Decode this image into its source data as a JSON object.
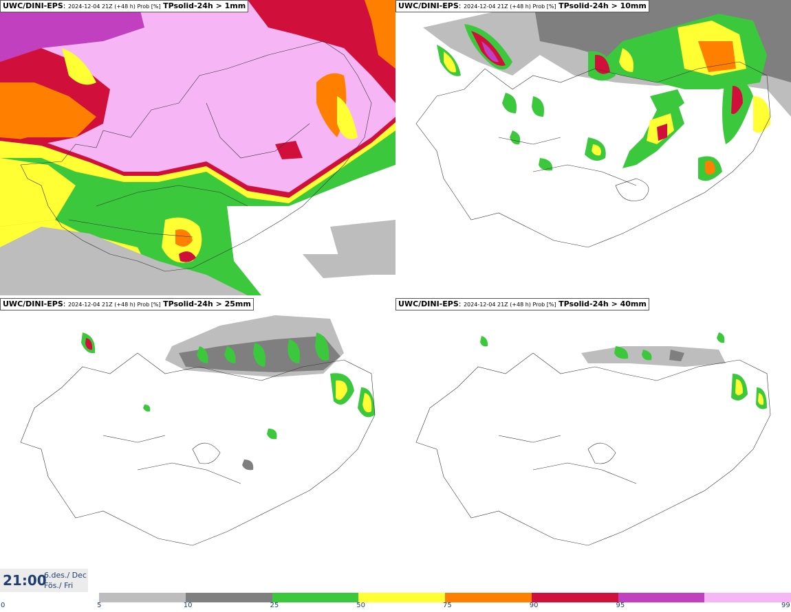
{
  "panels": [
    {
      "model": "UWC/DINI-EPS",
      "run": "2024-12-04 21Z (+48 h) Prob [%]",
      "param": "TPsolid-24h > 1mm"
    },
    {
      "model": "UWC/DINI-EPS",
      "run": "2024-12-04 21Z (+48 h) Prob [%]",
      "param": "TPsolid-24h > 10mm"
    },
    {
      "model": "UWC/DINI-EPS",
      "run": "2024-12-04 21Z (+48 h) Prob [%]",
      "param": "TPsolid-24h > 25mm"
    },
    {
      "model": "UWC/DINI-EPS",
      "run": "2024-12-04 21Z (+48 h) Prob [%]",
      "param": "TPsolid-24h > 40mm"
    }
  ],
  "valid_time": {
    "time": "21:00",
    "date_line1": "6.des./ Dec",
    "date_line2": "Fös./ Fri"
  },
  "legend": {
    "ticks": [
      "0",
      "5",
      "10",
      "25",
      "50",
      "75",
      "90",
      "95",
      "99"
    ],
    "colors": [
      "#bdbdbd",
      "#7f7f7f",
      "#3cc83c",
      "#ffff33",
      "#ff7f00",
      "#d0103a",
      "#c040c0",
      "#f6b6f6"
    ]
  }
}
